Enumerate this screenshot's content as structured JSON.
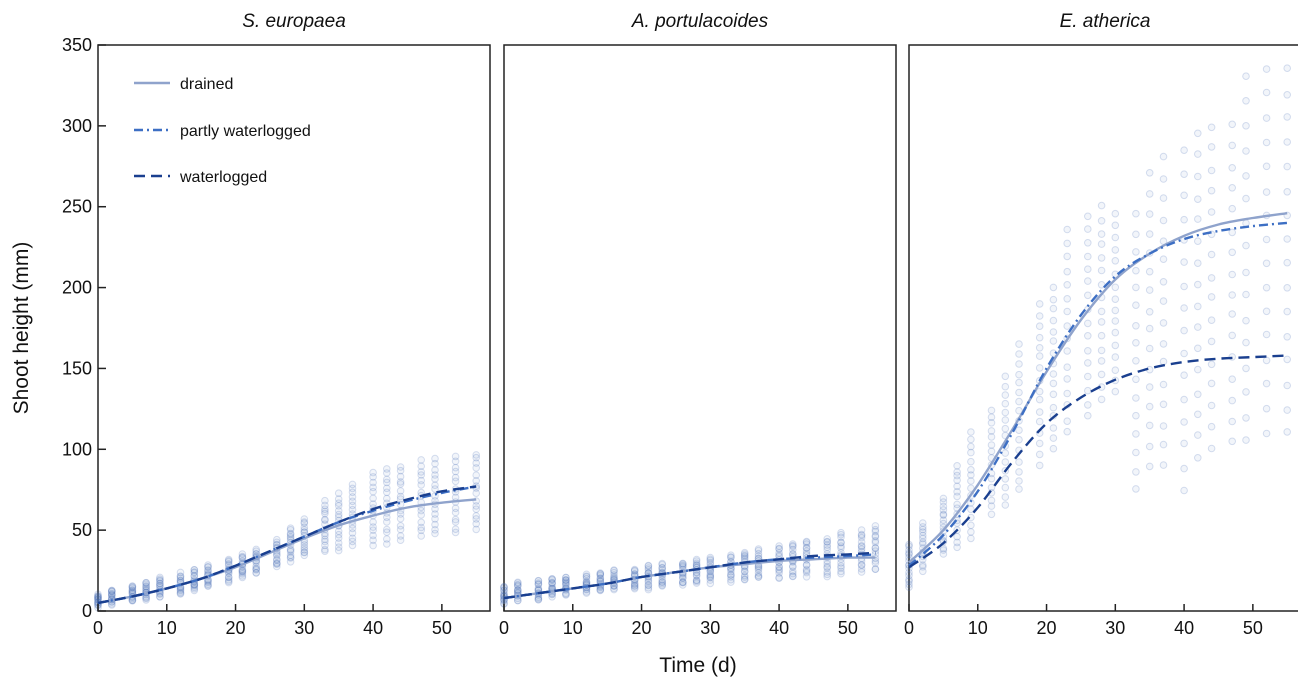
{
  "colors": {
    "drained": "#8fa3cc",
    "partly_waterlogged": "#3d6fc4",
    "waterlogged": "#1a3f8f",
    "points": "#4a6fb8"
  },
  "chart_data": [
    {
      "type": "scatter",
      "title": "S. europaea",
      "xlabel": "Time (d)",
      "ylabel": "Shoot height (mm)",
      "xlim": [
        0,
        57
      ],
      "ylim": [
        0,
        350
      ],
      "xticks": [
        0,
        10,
        20,
        30,
        40,
        50
      ],
      "yticks": [
        0,
        50,
        100,
        150,
        200,
        250,
        300,
        350
      ],
      "legend": {
        "placement": "top-left",
        "entries": [
          "drained",
          "partly waterlogged",
          "waterlogged"
        ]
      },
      "points": {
        "days": [
          0,
          2,
          5,
          7,
          9,
          12,
          14,
          16,
          19,
          21,
          23,
          26,
          28,
          30,
          33,
          35,
          37,
          40,
          42,
          44,
          47,
          49,
          52,
          55
        ],
        "ranges": [
          [
            3,
            10
          ],
          [
            4,
            13
          ],
          [
            6,
            16
          ],
          [
            7,
            18
          ],
          [
            8,
            21
          ],
          [
            10,
            23
          ],
          [
            12,
            26
          ],
          [
            15,
            28
          ],
          [
            18,
            32
          ],
          [
            20,
            35
          ],
          [
            23,
            38
          ],
          [
            27,
            44
          ],
          [
            31,
            51
          ],
          [
            34,
            57
          ],
          [
            36,
            68
          ],
          [
            38,
            72
          ],
          [
            40,
            78
          ],
          [
            40,
            85
          ],
          [
            42,
            88
          ],
          [
            44,
            90
          ],
          [
            46,
            93
          ],
          [
            47,
            94
          ],
          [
            48,
            95
          ],
          [
            50,
            97
          ]
        ]
      },
      "series": [
        {
          "name": "drained",
          "style": "solid",
          "x": [
            0,
            5,
            10,
            15,
            20,
            25,
            30,
            35,
            40,
            45,
            50,
            55
          ],
          "y": [
            5,
            9,
            14,
            20,
            27,
            36,
            45,
            53,
            59,
            64,
            67,
            69
          ]
        },
        {
          "name": "partly waterlogged",
          "style": "dashdot",
          "x": [
            0,
            5,
            10,
            15,
            20,
            25,
            30,
            35,
            40,
            45,
            50,
            55
          ],
          "y": [
            5,
            9,
            14,
            20,
            28,
            37,
            46,
            55,
            62,
            68,
            73,
            77
          ]
        },
        {
          "name": "waterlogged",
          "style": "dashed",
          "x": [
            0,
            5,
            10,
            15,
            20,
            25,
            30,
            35,
            40,
            45,
            50,
            55
          ],
          "y": [
            5,
            9,
            14,
            20,
            28,
            37,
            46,
            55,
            63,
            69,
            74,
            77
          ]
        }
      ]
    },
    {
      "type": "scatter",
      "title": "A. portulacoides",
      "xlim": [
        0,
        57
      ],
      "ylim": [
        0,
        350
      ],
      "xticks": [
        0,
        10,
        20,
        30,
        40,
        50
      ],
      "points": {
        "days": [
          0,
          2,
          5,
          7,
          9,
          12,
          14,
          16,
          19,
          21,
          23,
          26,
          28,
          30,
          33,
          35,
          37,
          40,
          42,
          44,
          47,
          49,
          52,
          54
        ],
        "ranges": [
          [
            5,
            15
          ],
          [
            6,
            18
          ],
          [
            7,
            19
          ],
          [
            9,
            20
          ],
          [
            10,
            21
          ],
          [
            11,
            22
          ],
          [
            12,
            24
          ],
          [
            13,
            25
          ],
          [
            14,
            26
          ],
          [
            14,
            28
          ],
          [
            15,
            29
          ],
          [
            16,
            30
          ],
          [
            17,
            32
          ],
          [
            18,
            33
          ],
          [
            18,
            35
          ],
          [
            19,
            37
          ],
          [
            20,
            38
          ],
          [
            20,
            40
          ],
          [
            21,
            42
          ],
          [
            22,
            44
          ],
          [
            22,
            45
          ],
          [
            23,
            48
          ],
          [
            24,
            50
          ],
          [
            25,
            53
          ]
        ]
      },
      "series": [
        {
          "name": "drained",
          "style": "solid",
          "x": [
            0,
            5,
            10,
            15,
            20,
            25,
            30,
            35,
            40,
            45,
            50,
            54
          ],
          "y": [
            8,
            11,
            14,
            17,
            21,
            24,
            27,
            29,
            31,
            32,
            33,
            33
          ]
        },
        {
          "name": "partly waterlogged",
          "style": "dashdot",
          "x": [
            0,
            5,
            10,
            15,
            20,
            25,
            30,
            35,
            40,
            45,
            50,
            54
          ],
          "y": [
            8,
            11,
            14,
            17,
            21,
            24,
            27,
            30,
            32,
            33,
            34,
            35
          ]
        },
        {
          "name": "waterlogged",
          "style": "dashed",
          "x": [
            0,
            5,
            10,
            15,
            20,
            25,
            30,
            35,
            40,
            45,
            50,
            54
          ],
          "y": [
            8,
            11,
            14,
            17,
            21,
            24,
            27,
            30,
            32,
            34,
            35,
            36
          ]
        }
      ]
    },
    {
      "type": "scatter",
      "title": "E. atherica",
      "xlim": [
        0,
        57
      ],
      "ylim": [
        0,
        350
      ],
      "xticks": [
        0,
        10,
        20,
        30,
        40,
        50
      ],
      "points": {
        "days": [
          0,
          2,
          5,
          7,
          9,
          12,
          14,
          16,
          19,
          21,
          23,
          26,
          28,
          30,
          33,
          35,
          37,
          40,
          42,
          44,
          47,
          49,
          52,
          55
        ],
        "ranges": [
          [
            15,
            42
          ],
          [
            25,
            55
          ],
          [
            35,
            70
          ],
          [
            40,
            90
          ],
          [
            45,
            110
          ],
          [
            60,
            125
          ],
          [
            65,
            145
          ],
          [
            75,
            165
          ],
          [
            90,
            190
          ],
          [
            100,
            200
          ],
          [
            110,
            235
          ],
          [
            120,
            245
          ],
          [
            130,
            250
          ],
          [
            135,
            245
          ],
          [
            75,
            245
          ],
          [
            90,
            270
          ],
          [
            90,
            280
          ],
          [
            75,
            285
          ],
          [
            95,
            295
          ],
          [
            100,
            300
          ],
          [
            105,
            300
          ],
          [
            105,
            330
          ],
          [
            110,
            335
          ],
          [
            110,
            335
          ]
        ]
      },
      "series": [
        {
          "name": "drained",
          "style": "solid",
          "x": [
            0,
            5,
            10,
            15,
            20,
            25,
            30,
            35,
            40,
            45,
            50,
            55
          ],
          "y": [
            30,
            50,
            78,
            112,
            148,
            180,
            205,
            221,
            232,
            239,
            243,
            246
          ]
        },
        {
          "name": "partly waterlogged",
          "style": "dashdot",
          "x": [
            0,
            5,
            10,
            15,
            20,
            25,
            30,
            35,
            40,
            45,
            50,
            55
          ],
          "y": [
            28,
            47,
            74,
            110,
            150,
            183,
            207,
            221,
            230,
            235,
            238,
            240
          ]
        },
        {
          "name": "waterlogged",
          "style": "dashed",
          "x": [
            0,
            5,
            10,
            15,
            20,
            25,
            30,
            35,
            40,
            45,
            50,
            55
          ],
          "y": [
            27,
            42,
            64,
            92,
            116,
            132,
            143,
            150,
            154,
            156,
            157,
            158
          ]
        }
      ]
    }
  ]
}
